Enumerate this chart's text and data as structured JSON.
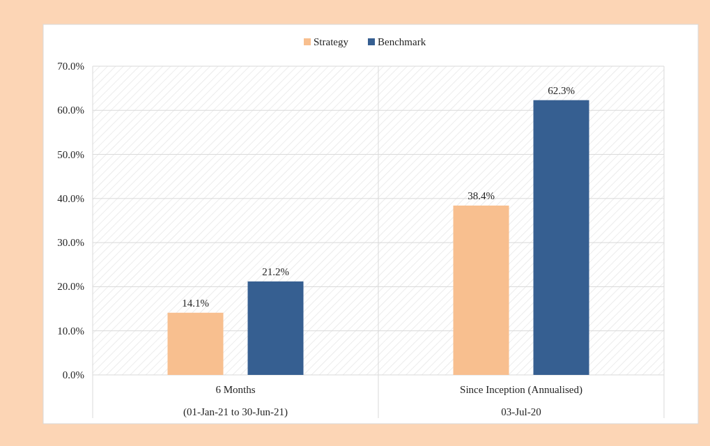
{
  "chart_data": {
    "type": "bar",
    "categories": [
      "6 Months\n(01-Jan-21 to 30-Jun-21)",
      "Since Inception (Annualised)\n03-Jul-20"
    ],
    "series": [
      {
        "name": "Strategy",
        "color": "#f8bf8f",
        "values": [
          14.1,
          38.4
        ],
        "value_labels": [
          "14.1%",
          "38.4%"
        ]
      },
      {
        "name": "Benchmark",
        "color": "#365f91",
        "values": [
          21.2,
          62.3
        ],
        "value_labels": [
          "21.2%",
          "62.3%"
        ]
      }
    ],
    "ylim": [
      0,
      70
    ],
    "yticks": [
      {
        "value": 0,
        "label": "0.0%"
      },
      {
        "value": 10,
        "label": "10.0%"
      },
      {
        "value": 20,
        "label": "20.0%"
      },
      {
        "value": 30,
        "label": "30.0%"
      },
      {
        "value": 40,
        "label": "40.0%"
      },
      {
        "value": 50,
        "label": "50.0%"
      },
      {
        "value": 60,
        "label": "60.0%"
      },
      {
        "value": 70,
        "label": "70.0%"
      }
    ],
    "grid": "y",
    "legend": "top"
  }
}
